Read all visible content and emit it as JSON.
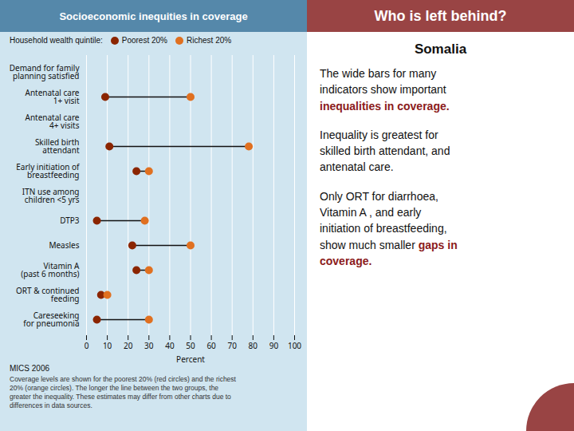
{
  "chart_data": {
    "type": "dumbbell",
    "title": "Socioeconomic inequities in coverage",
    "orientation": "horizontal",
    "categories": [
      "Demand for family\nplanning satisfied",
      "Antenatal care\n1+ visit",
      "Antenatal care\n4+ visits",
      "Skilled birth\nattendant",
      "Early initiation of\nbreastfeeding",
      "ITN use among\nchildren <5 yrs",
      "DTP3",
      "Measles",
      "Vitamin A\n(past 6 months)",
      "ORT & continued\nfeeding",
      "Careseeking\nfor pneumonia"
    ],
    "series": [
      {
        "name": "Poorest 20%",
        "color": "#8B2500",
        "values": [
          null,
          9,
          null,
          11,
          24,
          null,
          5,
          22,
          24,
          7,
          5
        ]
      },
      {
        "name": "Richest 20%",
        "color": "#E07020",
        "values": [
          null,
          50,
          null,
          78,
          30,
          null,
          28,
          50,
          30,
          10,
          30
        ]
      }
    ],
    "line_color": "#111111",
    "legend_title": "Household wealth quintile:",
    "xlabel": "Percent",
    "xlim": [
      0,
      100
    ],
    "xticks": [
      0,
      10,
      20,
      30,
      40,
      50,
      60,
      70,
      80,
      90,
      100
    ],
    "grid": true,
    "source": "MICS 2006",
    "caption": "Coverage levels are shown for the poorest 20% (red circles) and the richest\n20% (orange circles). The longer the line between the two groups, the\ngreater the inequality. These estimates may differ from other charts due to\ndifferences in data sources.",
    "background_color": "#d0e5f0",
    "title_background": "#5588aa"
  },
  "side_panel": {
    "title": "Who is left behind?",
    "title_color": "#ffffff",
    "header_color": "#994444",
    "subtitle": "Somalia",
    "paragraphs": [
      [
        {
          "text": "The wide bars for many\nindicators show important\n"
        },
        {
          "text": "inequalities in coverage.",
          "color": "#8B1A1A"
        }
      ],
      [
        {
          "text": "Inequality is greatest for\nskilled birth attendant, and\nantenatal care."
        }
      ],
      [
        {
          "text": "Only ORT for diarrhoea,\nVitamin A , and early\ninitiation of breastfeeding,\nshow much smaller "
        },
        {
          "text": "gaps in\ncoverage.",
          "color": "#8B1A1A"
        }
      ]
    ]
  }
}
